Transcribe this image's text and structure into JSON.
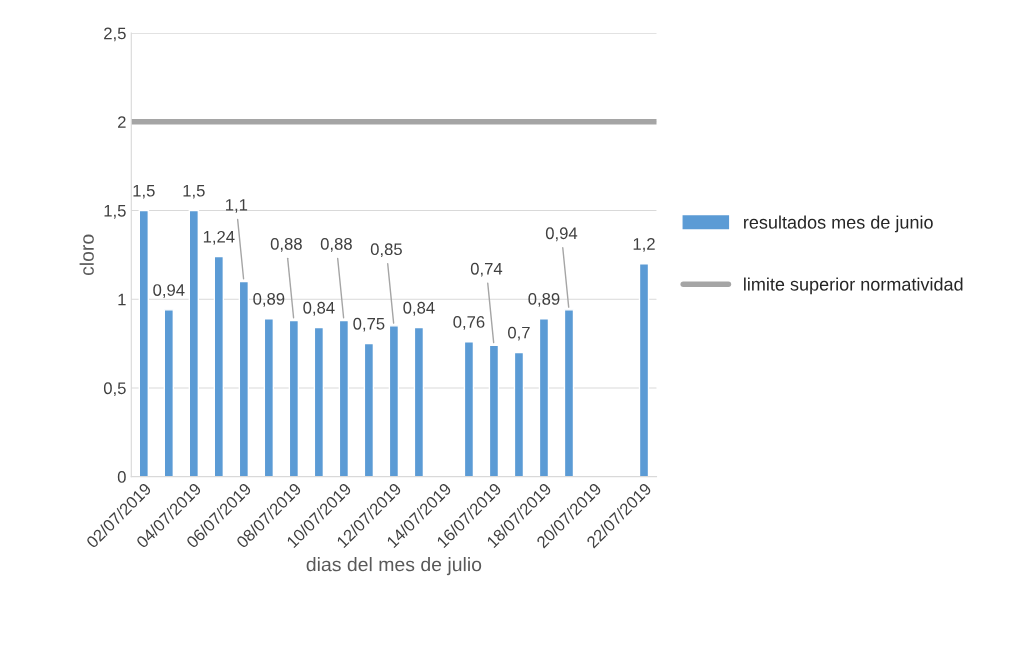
{
  "chart_data": {
    "type": "bar",
    "xlabel": "dias del mes de julio",
    "ylabel": "cloro",
    "xlim": [
      "2019-07-01T12:00",
      "2019-07-22T12:00"
    ],
    "xticks": [
      {
        "value": "2019-07-02",
        "label": "02/07/2019"
      },
      {
        "value": "2019-07-04",
        "label": "04/07/2019"
      },
      {
        "value": "2019-07-06",
        "label": "06/07/2019"
      },
      {
        "value": "2019-07-08",
        "label": "08/07/2019"
      },
      {
        "value": "2019-07-10",
        "label": "10/07/2019"
      },
      {
        "value": "2019-07-12",
        "label": "12/07/2019"
      },
      {
        "value": "2019-07-14",
        "label": "14/07/2019"
      },
      {
        "value": "2019-07-16",
        "label": "16/07/2019"
      },
      {
        "value": "2019-07-18",
        "label": "18/07/2019"
      },
      {
        "value": "2019-07-20",
        "label": "20/07/2019"
      },
      {
        "value": "2019-07-22",
        "label": "22/07/2019"
      }
    ],
    "ylim": [
      0,
      2.5
    ],
    "yticks": [
      {
        "value": 0,
        "label": "0"
      },
      {
        "value": 0.5,
        "label": "0,5"
      },
      {
        "value": 1,
        "label": "1"
      },
      {
        "value": 1.5,
        "label": "1,5"
      },
      {
        "value": 2,
        "label": "2"
      },
      {
        "value": 2.5,
        "label": "2,5"
      }
    ],
    "grid": "y",
    "legend": "right",
    "series": [
      {
        "name": "resultados mes de junio",
        "color": "#5b9bd5",
        "x": [
          "2019-07-02",
          "2019-07-03",
          "2019-07-04",
          "2019-07-05",
          "2019-07-06",
          "2019-07-07",
          "2019-07-08",
          "2019-07-09",
          "2019-07-10",
          "2019-07-11",
          "2019-07-12",
          "2019-07-13",
          "2019-07-15",
          "2019-07-16",
          "2019-07-17",
          "2019-07-18",
          "2019-07-19",
          "2019-07-22"
        ],
        "values": [
          1.5,
          0.94,
          1.5,
          1.24,
          1.1,
          0.89,
          0.88,
          0.84,
          0.88,
          0.75,
          0.85,
          0.84,
          0.76,
          0.74,
          0.7,
          0.89,
          0.94,
          1.2
        ],
        "value_labels": [
          "1,5",
          "0,94",
          "1,5",
          "1,24",
          "1,1",
          "0,89",
          "0,88",
          "0,84",
          "0,88",
          "0,75",
          "0,85",
          "0,84",
          "0,76",
          "0,74",
          "0,7",
          "0,89",
          "0,94",
          "1,2"
        ]
      },
      {
        "name": "limite superior normatividad",
        "type": "line",
        "color": "#a5a5a5",
        "x": [
          "2019-07-01T12:00",
          "2019-07-22T12:00"
        ],
        "values": [
          2,
          2
        ]
      }
    ]
  }
}
